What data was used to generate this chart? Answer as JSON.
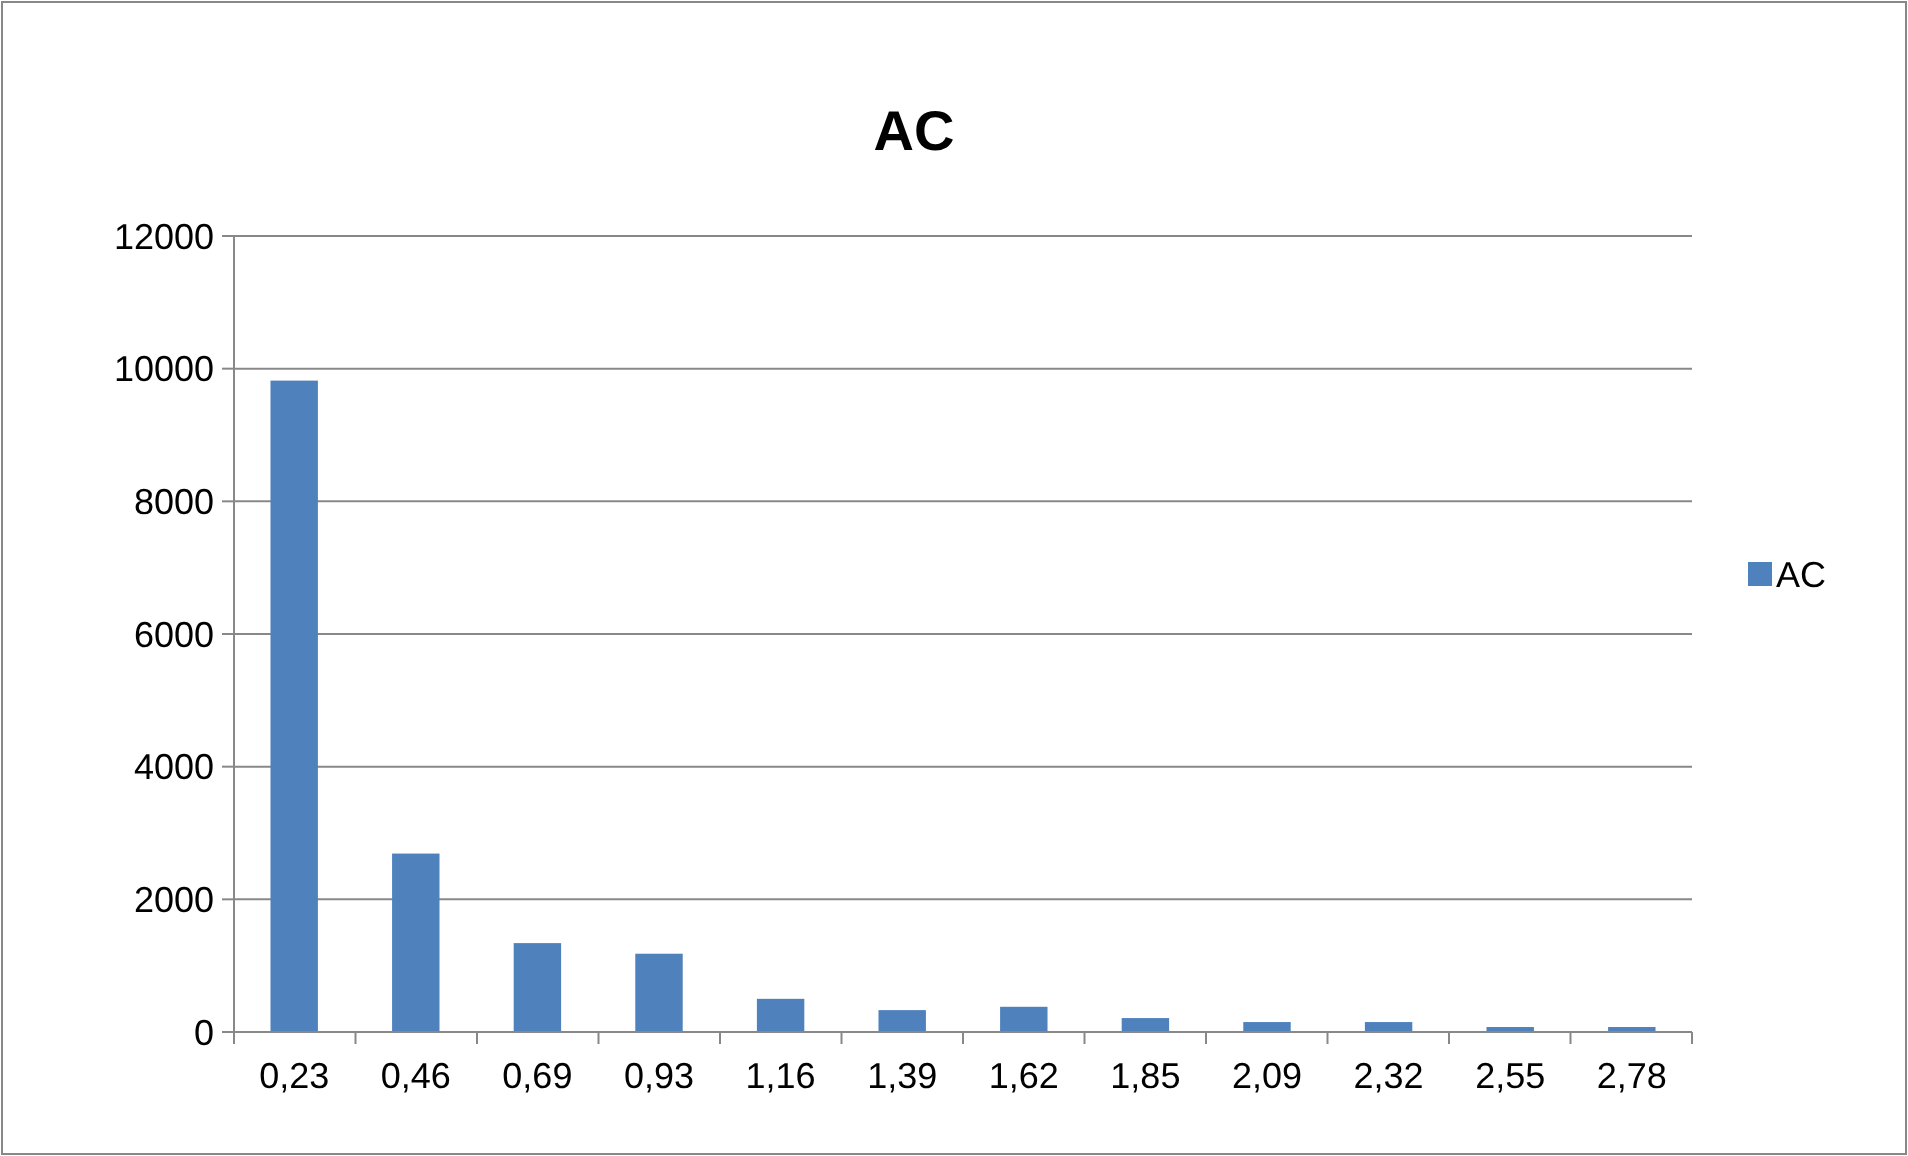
{
  "chart_data": {
    "type": "bar",
    "title": "AC",
    "categories": [
      "0,23",
      "0,46",
      "0,69",
      "0,93",
      "1,16",
      "1,39",
      "1,62",
      "1,85",
      "2,09",
      "2,32",
      "2,55",
      "2,78"
    ],
    "series": [
      {
        "name": "AC",
        "color": "#4f81bd",
        "values": [
          9820,
          2690,
          1340,
          1180,
          500,
          330,
          380,
          210,
          150,
          150,
          75,
          75
        ]
      }
    ],
    "ylim": [
      0,
      12000
    ],
    "yticks": [
      0,
      2000,
      4000,
      6000,
      8000,
      10000,
      12000
    ],
    "grid": "y",
    "legend": "right"
  }
}
